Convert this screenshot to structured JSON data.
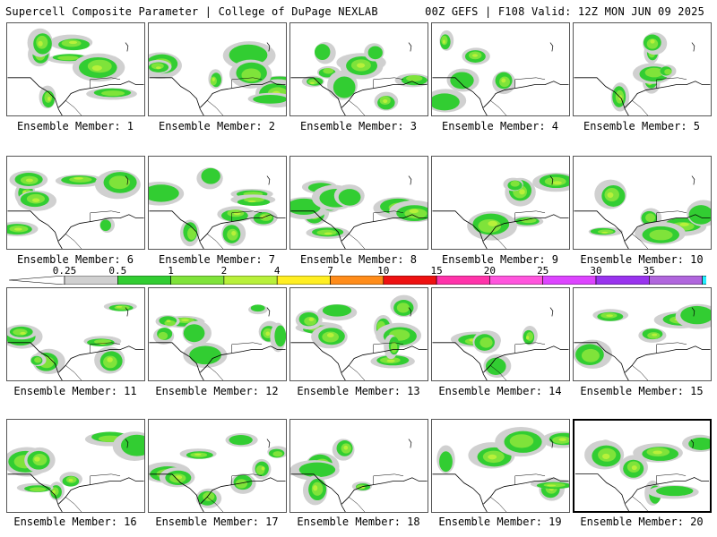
{
  "header": {
    "left": "Supercell Composite Parameter | College of DuPage NEXLAB",
    "right": "00Z GEFS | F108 Valid: 12Z MON JUN 09 2025"
  },
  "colorbar": {
    "labels": [
      "0.25",
      "0.5",
      "1",
      "2",
      "4",
      "7",
      "10",
      "15",
      "20",
      "25",
      "30",
      "35"
    ],
    "colors": [
      "#d0d0d0",
      "#32cd32",
      "#7fe33a",
      "#b8f03a",
      "#ffee22",
      "#ff8c1a",
      "#ee1111",
      "#ff33aa",
      "#ff55dd",
      "#dd44ff",
      "#9933ee",
      "#b066dd",
      "#22eeff"
    ]
  },
  "panels": [
    {
      "label": "Ensemble Member: 1"
    },
    {
      "label": "Ensemble Member: 2"
    },
    {
      "label": "Ensemble Member: 3"
    },
    {
      "label": "Ensemble Member: 4"
    },
    {
      "label": "Ensemble Member: 5"
    },
    {
      "label": "Ensemble Member: 6"
    },
    {
      "label": "Ensemble Member: 7"
    },
    {
      "label": "Ensemble Member: 8"
    },
    {
      "label": "Ensemble Member: 9"
    },
    {
      "label": "Ensemble Member: 10"
    },
    {
      "label": "Ensemble Member: 11"
    },
    {
      "label": "Ensemble Member: 12"
    },
    {
      "label": "Ensemble Member: 13"
    },
    {
      "label": "Ensemble Member: 14"
    },
    {
      "label": "Ensemble Member: 15"
    },
    {
      "label": "Ensemble Member: 16"
    },
    {
      "label": "Ensemble Member: 17"
    },
    {
      "label": "Ensemble Member: 18"
    },
    {
      "label": "Ensemble Member: 19"
    },
    {
      "label": "Ensemble Member: 20"
    }
  ]
}
